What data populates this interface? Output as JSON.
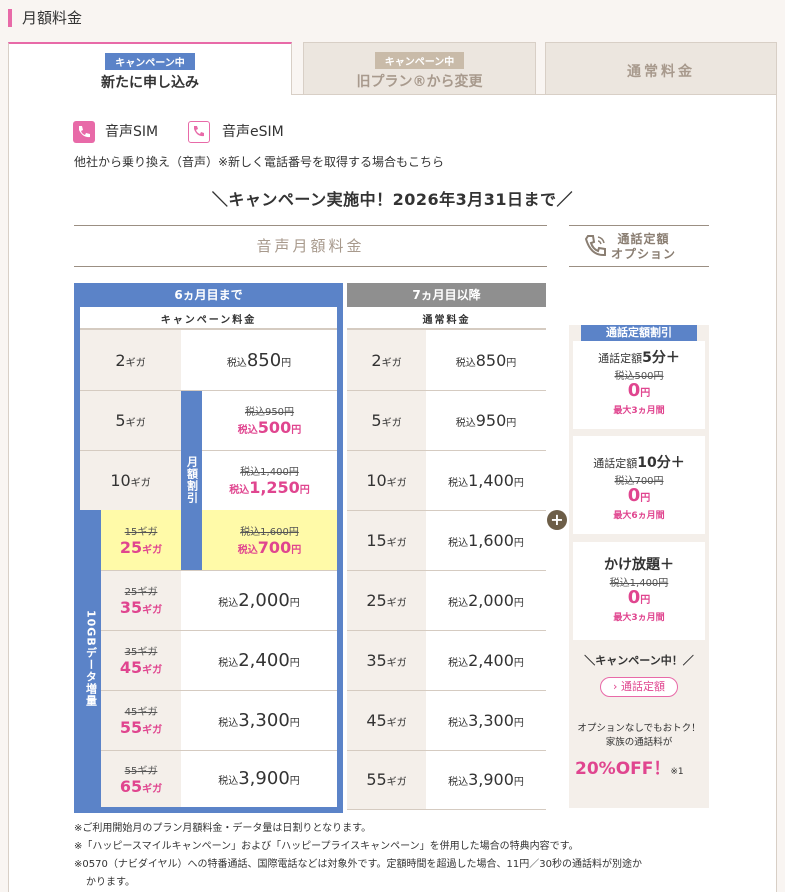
{
  "heading": "月額料金",
  "tabs": [
    {
      "badge": "キャンペーン中",
      "title": "新たに申し込み"
    },
    {
      "badge": "キャンペーン中",
      "title": "旧プラン®から変更"
    },
    {
      "title": "通常料金"
    }
  ],
  "sim": {
    "voice": "音声SIM",
    "esim": "音声eSIM",
    "sub": "他社から乗り換え（音声）※新しく電話番号を取得する場合もこちら"
  },
  "campaign": "＼キャンペーン実施中！2026年3月31日まで／",
  "section": {
    "monthly": "音声月額料金",
    "option_title": "通話定額\nオプション"
  },
  "col_campaign": {
    "head": "6ヵ月目まで",
    "sub": "キャンペーン料金",
    "vlabel_discount": "月額割引",
    "vlabel_data": "10GBデータ増量"
  },
  "col_normal": {
    "head": "7ヵ月目以降",
    "sub": "通常料金"
  },
  "unit_g": "ギガ",
  "tax": "税込",
  "yen": "円",
  "rows": [
    {
      "old_g": "",
      "g": "2",
      "price": "850",
      "old_price": "",
      "normal_g": "2",
      "normal_price": "850"
    },
    {
      "old_g": "",
      "g": "5",
      "price": "500",
      "old_price": "950",
      "normal_g": "5",
      "normal_price": "950"
    },
    {
      "old_g": "",
      "g": "10",
      "price": "1,250",
      "old_price": "1,400",
      "normal_g": "10",
      "normal_price": "1,400"
    },
    {
      "old_g": "15",
      "g": "25",
      "price": "700",
      "old_price": "1,600",
      "normal_g": "15",
      "normal_price": "1,600"
    },
    {
      "old_g": "25",
      "g": "35",
      "price": "2,000",
      "old_price": "",
      "normal_g": "25",
      "normal_price": "2,000"
    },
    {
      "old_g": "35",
      "g": "45",
      "price": "2,400",
      "old_price": "",
      "normal_g": "35",
      "normal_price": "2,400"
    },
    {
      "old_g": "45",
      "g": "55",
      "price": "3,300",
      "old_price": "",
      "normal_g": "45",
      "normal_price": "3,300"
    },
    {
      "old_g": "55",
      "g": "65",
      "price": "3,900",
      "old_price": "",
      "normal_g": "55",
      "normal_price": "3,900"
    }
  ],
  "options": {
    "head": "通話定額割引",
    "items": [
      {
        "pre": "通話定額",
        "big": "5分＋",
        "old": "税込500円",
        "val": "0",
        "unit": "円",
        "note": "最大3ヵ月間"
      },
      {
        "pre": "通話定額",
        "big": "10分＋",
        "old": "税込700円",
        "val": "0",
        "unit": "円",
        "note": "最大6ヵ月間"
      },
      {
        "pre": "",
        "big": "かけ放題＋",
        "old": "税込1,400円",
        "val": "0",
        "unit": "円",
        "note": "最大3ヵ月間"
      }
    ],
    "campaign": "＼キャンペーン中！／",
    "link": "通話定額",
    "family1": "オプションなしでもおトク！",
    "family2": "家族の通話料が",
    "off": "20%OFF！",
    "off_note": "※1"
  },
  "notes": [
    "※ご利用開始月のプラン月額料金・データ量は日割りとなります。",
    "※「ハッピースマイルキャンペーン」および「ハッピープライスキャンペーン」を併用した場合の特典内容です。",
    "※0570（ナビダイヤル）への特番通話、国際電話などは対象外です。定額時間を超過した場合、11円／30秒の通話料が別途か",
    "かります。"
  ],
  "colors": {
    "pink": "#e0458f",
    "blue": "#5b83c8",
    "gray": "#8f8f8f",
    "yellow": "#fffaa8",
    "beige": "#f4efea"
  }
}
